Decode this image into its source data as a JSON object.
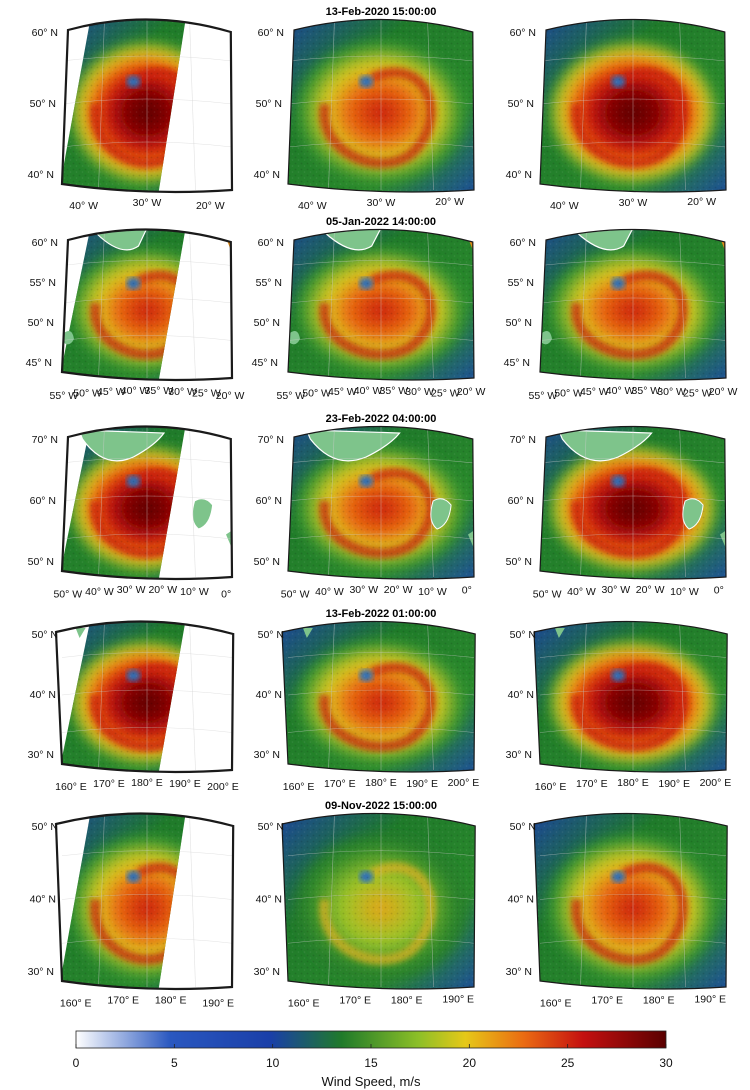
{
  "rows": [
    {
      "title": "13-Feb-2020 15:00:00",
      "lat_labels": [
        "60° N",
        "50° N",
        "40° N"
      ],
      "lon_labels": [
        "40° W",
        "30° W",
        "20° W"
      ]
    },
    {
      "title": "05-Jan-2022 14:00:00",
      "lat_labels": [
        "60° N",
        "55° N",
        "50° N",
        "45° N"
      ],
      "lon_labels": [
        "55° W",
        "50° W",
        "45° W",
        "40° W",
        "35° W",
        "30° W",
        "25° W",
        "20° W"
      ]
    },
    {
      "title": "23-Feb-2022 04:00:00",
      "lat_labels": [
        "70° N",
        "60° N",
        "50° N"
      ],
      "lon_labels": [
        "50° W",
        "40° W",
        "30° W",
        "20° W",
        "10° W",
        "0°"
      ]
    },
    {
      "title": "13-Feb-2022 01:00:00",
      "lat_labels": [
        "50° N",
        "40° N",
        "30° N"
      ],
      "lon_labels": [
        "160° E",
        "170° E",
        "180° E",
        "190° E",
        "200° E"
      ]
    },
    {
      "title": "09-Nov-2022 15:00:00",
      "lat_labels": [
        "50° N",
        "40° N",
        "30° N"
      ],
      "lon_labels": [
        "160° E",
        "170° E",
        "180° E",
        "190° E"
      ]
    }
  ],
  "colorbar": {
    "label": "Wind Speed, m/s",
    "ticks": [
      "0",
      "5",
      "10",
      "15",
      "20",
      "25",
      "30"
    ],
    "min": 0,
    "max": 30,
    "colors": [
      "#ffffff",
      "#1a3fa8",
      "#1f7a2a",
      "#d8cc20",
      "#e85010",
      "#c01010",
      "#5a0000"
    ]
  },
  "land_color": "#7ec48b"
}
